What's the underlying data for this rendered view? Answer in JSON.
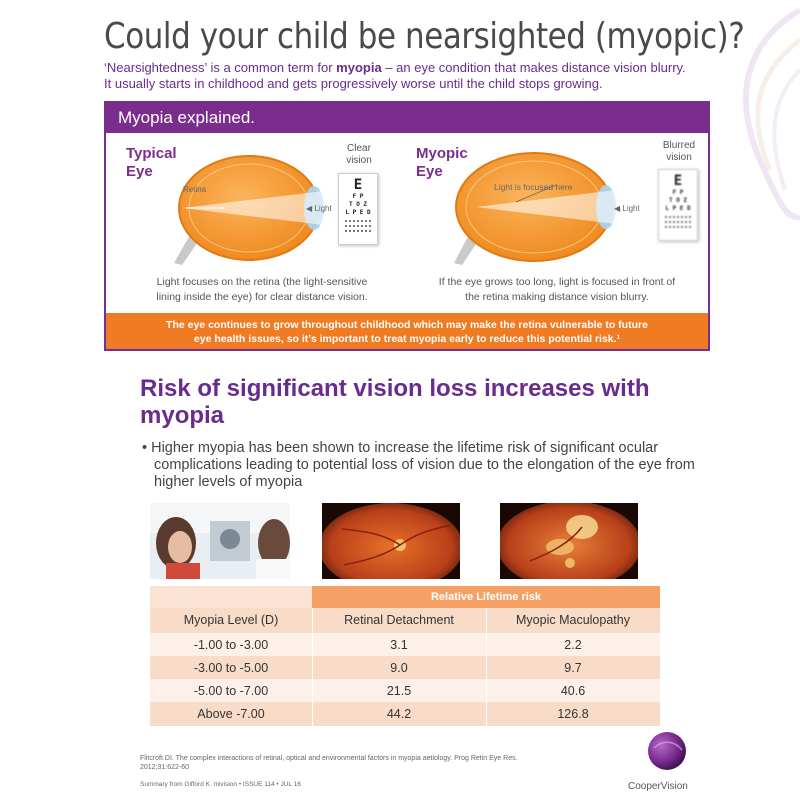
{
  "header": {
    "title": "Could your child be nearsighted (myopic)?",
    "intro_line1_pre": "‘Nearsightedness’ is a common term for ",
    "intro_line1_bold": "myopia",
    "intro_line1_post": " – an eye condition that makes distance vision blurry.",
    "intro_line2": "It usually starts in childhood and gets progressively worse until the child stops growing."
  },
  "panel": {
    "title": "Myopia explained.",
    "typical": {
      "label_line1": "Typical",
      "label_line2": "Eye",
      "vision_line1": "Clear",
      "vision_line2": "vision",
      "retina_label": "Retina",
      "light_label": "Light",
      "caption_line1": "Light focuses on the retina (the light-sensitive",
      "caption_line2": "lining inside the eye) for clear distance vision."
    },
    "myopic": {
      "label_line1": "Myopic",
      "label_line2": "Eye",
      "vision_line1": "Blurred",
      "vision_line2": "vision",
      "focus_label": "Light is focused here",
      "light_label": "Light",
      "caption_line1": "If the eye grows too long, light is focused in front of",
      "caption_line2": "the retina making distance vision blurry."
    },
    "eye_chart": {
      "row1": "E",
      "row2": "F P",
      "row3": "T O Z",
      "row4": "L P E D"
    },
    "banner_line1": "The eye continues to grow throughout childhood which may make the retina vulnerable to future",
    "banner_line2": "eye health issues, so it’s important to treat myopia early to reduce this potential risk.¹"
  },
  "risk": {
    "heading_line1": "Risk of significant vision loss increases with",
    "heading_line2": "myopia",
    "bullet": "• Higher myopia has been shown to increase the lifetime risk of significant ocular complications leading to potential loss of vision due to the elongation of the eye from higher levels of myopia"
  },
  "table": {
    "group_header": "Relative Lifetime risk",
    "columns": [
      "Myopia Level (D)",
      "Retinal Detachment",
      "Myopic Maculopathy"
    ],
    "rows": [
      [
        "-1.00 to -3.00",
        "3.1",
        "2.2"
      ],
      [
        "-3.00 to -5.00",
        "9.0",
        "9.7"
      ],
      [
        "-5.00 to -7.00",
        "21.5",
        "40.6"
      ],
      [
        "Above -7.00",
        "44.2",
        "126.8"
      ]
    ]
  },
  "footer": {
    "reference_line1": "Flitcroft DI. The complex interactions of retinal, optical and environmental factors in myopia aetiology. Prog Retin Eye Res.",
    "reference_line2": "2012;31:622-60",
    "summary": "Summary from Gifford K. mivision • ISSUE 114 • JUL 16",
    "brand": "CooperVision"
  },
  "colors": {
    "purple": "#7b2d8e",
    "orange": "#ef7b22",
    "table_header": "#f5a065",
    "row_light": "#fdf0e8",
    "row_dark": "#f9dcc8"
  }
}
